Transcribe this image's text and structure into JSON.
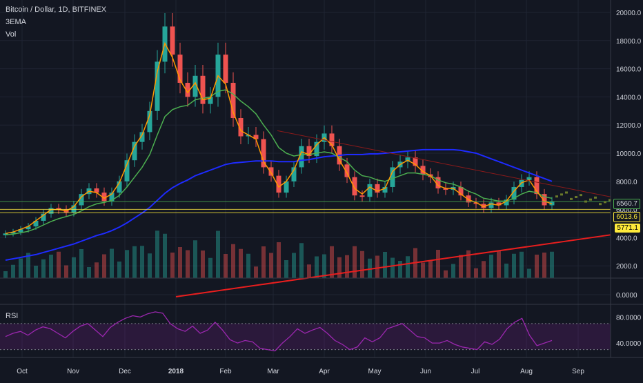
{
  "header": {
    "symbol_line": "Bitcoin / Dollar, 1D, BITFINEX",
    "indicator_1": "3EMA",
    "indicator_2": "Vol"
  },
  "price_labels": {
    "current": "6560.7",
    "level_1": "6013.6",
    "level_2": "5771.1"
  },
  "colors": {
    "background": "#131722",
    "up": "#26a69a",
    "down": "#ef5350",
    "ema_fast": "#ff9800",
    "ema_mid": "#4caf50",
    "ema_slow": "#1e2bff",
    "trend_red": "#e91e1e",
    "rsi": "#9c27b0",
    "highlight": "#ffeb3b"
  },
  "chart_data": [
    {
      "type": "line",
      "name": "price-panel",
      "x_ticks": [
        "Oct",
        "Nov",
        "Dec",
        "2018",
        "Feb",
        "Mar",
        "Apr",
        "May",
        "Jun",
        "Jul",
        "Aug",
        "Sep"
      ],
      "y_ticks": [
        "20000.0",
        "18000.0",
        "16000.0",
        "14000.0",
        "12000.0",
        "10000.0",
        "8000.0",
        "6000.0",
        "4000.0",
        "2000.0",
        "0.0000"
      ],
      "ylim": [
        0,
        20000
      ],
      "x_index_range": [
        0,
        345
      ],
      "candles_close_approx": [
        4300,
        4400,
        4600,
        4800,
        5200,
        5700,
        6100,
        6000,
        5800,
        6300,
        7100,
        7500,
        7200,
        6600,
        7200,
        8000,
        9500,
        10800,
        11500,
        13000,
        16500,
        19000,
        17000,
        15000,
        14000,
        15500,
        13500,
        14000,
        17000,
        15000,
        12500,
        11200,
        11300,
        11000,
        9000,
        8400,
        7200,
        8000,
        9000,
        10500,
        9800,
        10800,
        11400,
        10500,
        9200,
        8300,
        7000,
        6900,
        7800,
        7200,
        7600,
        9000,
        9400,
        9700,
        9100,
        8500,
        8300,
        7500,
        7400,
        7600,
        7000,
        6500,
        6400,
        6100,
        6500,
        6300,
        6700,
        7600,
        8100,
        8300,
        7100,
        6300,
        6560.7
      ],
      "ema_fast": [
        4300,
        4400,
        4600,
        4800,
        5200,
        5600,
        6000,
        6000,
        5900,
        6200,
        6900,
        7300,
        7200,
        6800,
        7100,
        7900,
        9200,
        10500,
        11300,
        12700,
        15800,
        17800,
        16800,
        15200,
        14300,
        15000,
        13800,
        13900,
        15500,
        14900,
        12900,
        11600,
        11300,
        11000,
        9400,
        8600,
        7600,
        8000,
        8800,
        10100,
        9900,
        10600,
        11100,
        10600,
        9500,
        8600,
        7500,
        7100,
        7600,
        7300,
        7500,
        8700,
        9200,
        9500,
        9200,
        8700,
        8400,
        7700,
        7500,
        7500,
        7100,
        6700,
        6500,
        6200,
        6400,
        6300,
        6600,
        7300,
        7900,
        8100,
        7300,
        6600,
        6400
      ],
      "ema_mid": [
        4200,
        4250,
        4350,
        4450,
        4650,
        4900,
        5150,
        5350,
        5500,
        5650,
        5900,
        6200,
        6400,
        6500,
        6650,
        7000,
        7600,
        8300,
        9000,
        9900,
        11300,
        12600,
        13100,
        13300,
        13400,
        13800,
        13900,
        14000,
        14400,
        14500,
        14200,
        13700,
        13300,
        12800,
        12000,
        11300,
        10400,
        10000,
        9800,
        9900,
        9900,
        10000,
        10100,
        10000,
        9700,
        9400,
        8800,
        8400,
        8300,
        8100,
        8000,
        8200,
        8400,
        8600,
        8600,
        8500,
        8400,
        8100,
        7900,
        7800,
        7600,
        7300,
        7100,
        6800,
        6700,
        6600,
        6600,
        6800,
        7100,
        7300,
        7200,
        6900,
        6800
      ],
      "ema_slow": [
        2400,
        2500,
        2600,
        2700,
        2800,
        2950,
        3100,
        3250,
        3400,
        3550,
        3750,
        3950,
        4150,
        4300,
        4500,
        4750,
        5050,
        5400,
        5750,
        6150,
        6650,
        7150,
        7550,
        7850,
        8100,
        8400,
        8600,
        8800,
        9000,
        9200,
        9300,
        9350,
        9400,
        9450,
        9450,
        9450,
        9400,
        9400,
        9400,
        9500,
        9550,
        9650,
        9750,
        9800,
        9850,
        9900,
        9900,
        9900,
        9950,
        9950,
        10000,
        10050,
        10100,
        10150,
        10200,
        10250,
        10250,
        10250,
        10250,
        10250,
        10200,
        10100,
        10000,
        9800,
        9600,
        9400,
        9200,
        9000,
        8800,
        8600,
        8400,
        8200,
        8000
      ],
      "horizontal_levels": [
        6560.7,
        6013.6,
        5771.1
      ],
      "grid": true
    },
    {
      "type": "line",
      "name": "rsi-panel",
      "title": "RSI",
      "y_ticks": [
        "80.0000",
        "40.0000"
      ],
      "ylim": [
        20,
        90
      ],
      "band": [
        30,
        70
      ],
      "values": [
        50,
        55,
        58,
        52,
        60,
        65,
        62,
        55,
        48,
        58,
        66,
        70,
        60,
        50,
        64,
        72,
        78,
        82,
        80,
        85,
        88,
        86,
        70,
        62,
        58,
        66,
        55,
        60,
        72,
        60,
        45,
        40,
        44,
        42,
        32,
        30,
        28,
        40,
        50,
        62,
        55,
        60,
        64,
        55,
        44,
        38,
        30,
        34,
        48,
        42,
        48,
        62,
        66,
        70,
        60,
        50,
        48,
        40,
        40,
        44,
        38,
        34,
        32,
        30,
        42,
        38,
        46,
        62,
        72,
        78,
        52,
        36,
        40,
        44
      ]
    }
  ]
}
